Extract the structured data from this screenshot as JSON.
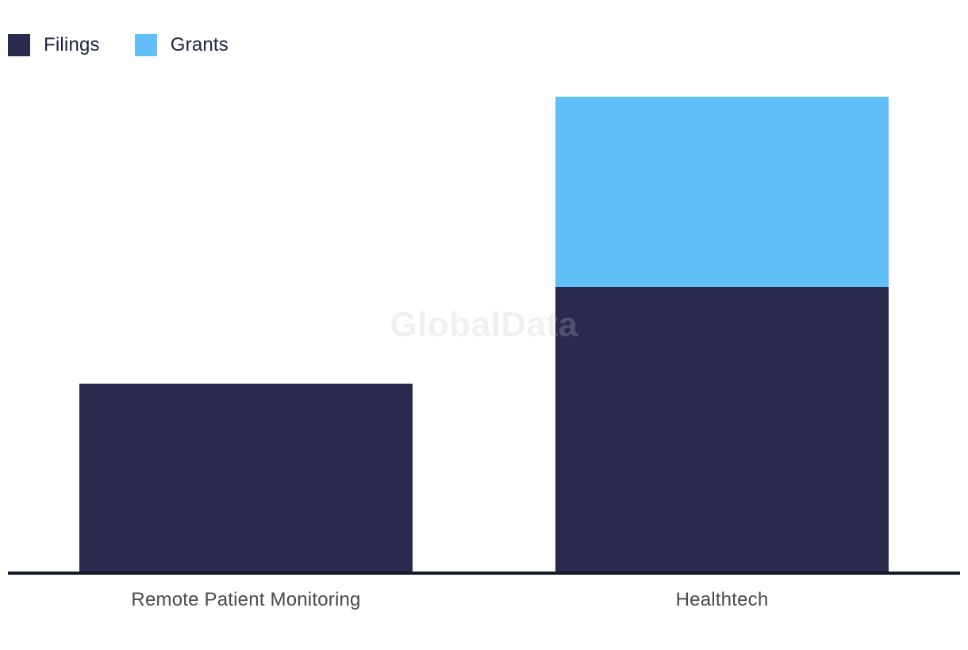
{
  "watermark": {
    "text": "GlobalData"
  },
  "legend": {
    "items": [
      {
        "label": "Filings",
        "color": "#292A4E"
      },
      {
        "label": "Grants",
        "color": "#61BFF7"
      }
    ]
  },
  "axis": {
    "line_color": "#161B2C",
    "label_color": "#4A4A4A"
  },
  "chart_data": {
    "type": "bar",
    "stacked": true,
    "title": "",
    "xlabel": "",
    "ylabel": "",
    "categories": [
      "Remote Patient Monitoring",
      "Healthtech"
    ],
    "series": [
      {
        "name": "Filings",
        "color": "#292A4E",
        "values": [
          237,
          359
        ]
      },
      {
        "name": "Grants",
        "color": "#61BFF7",
        "values": [
          0,
          240
        ]
      }
    ],
    "totals": [
      237,
      599
    ],
    "ylim": [
      0,
      620
    ],
    "value_axis_visible": false,
    "gridlines": false,
    "legend_position": "top-left",
    "note": "No value axis or data labels shown; series values estimated from bar segment heights (1 unit per pixel)."
  }
}
